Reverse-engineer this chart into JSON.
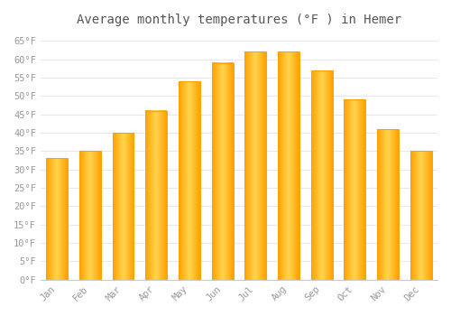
{
  "title": "Average monthly temperatures (°F ) in Hemer",
  "months": [
    "Jan",
    "Feb",
    "Mar",
    "Apr",
    "May",
    "Jun",
    "Jul",
    "Aug",
    "Sep",
    "Oct",
    "Nov",
    "Dec"
  ],
  "values": [
    33,
    35,
    40,
    46,
    54,
    59,
    62,
    62,
    57,
    49,
    41,
    35
  ],
  "bar_color_center": "#FFD54F",
  "bar_color_edge": "#FFA000",
  "background_color": "#FFFFFF",
  "plot_bg_color": "#FFFFFF",
  "grid_color": "#E8E8E8",
  "ylim": [
    0,
    67
  ],
  "yticks": [
    0,
    5,
    10,
    15,
    20,
    25,
    30,
    35,
    40,
    45,
    50,
    55,
    60,
    65
  ],
  "ytick_labels": [
    "0°F",
    "5°F",
    "10°F",
    "15°F",
    "20°F",
    "25°F",
    "30°F",
    "35°F",
    "40°F",
    "45°F",
    "50°F",
    "55°F",
    "60°F",
    "65°F"
  ],
  "tick_color": "#999999",
  "title_fontsize": 10,
  "tick_fontsize": 7.5,
  "font_family": "monospace",
  "bar_width": 0.65,
  "spine_color": "#CCCCCC"
}
